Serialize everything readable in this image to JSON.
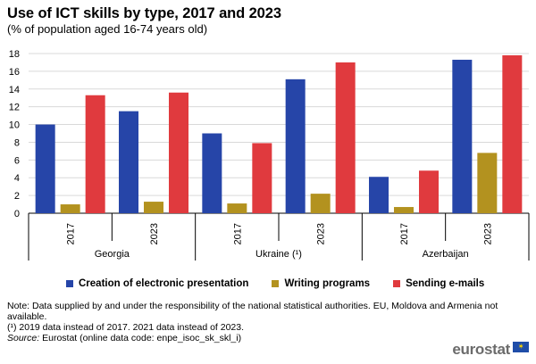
{
  "header": {
    "title": "Use of ICT skills by type, 2017 and 2023",
    "subtitle": "(% of population aged 16-74 years old)"
  },
  "legend": {
    "items": [
      {
        "label": "Creation of electronic presentation",
        "color": "#2645a8"
      },
      {
        "label": "Writing programs",
        "color": "#b3921f"
      },
      {
        "label": "Sending e-mails",
        "color": "#e03a3e"
      }
    ]
  },
  "notes": {
    "note1": "Note: Data supplied by and under the responsibility of the national statistical authorities. EU, Moldova and Armenia not available.",
    "note2": "(¹) 2019 data instead of 2017. 2021 data instead of 2023.",
    "source_label": "Source:",
    "source_text": " Eurostat (online data code: enpe_isoc_sk_skl_i)"
  },
  "logo": {
    "text": "eurostat",
    "icon": "eu-flag-icon"
  },
  "chart_data": {
    "type": "bar",
    "title": "Use of ICT skills by type, 2017 and 2023",
    "subtitle": "(% of population aged 16-74 years old)",
    "ylim": [
      0,
      18
    ],
    "yticks": [
      0,
      2,
      4,
      6,
      8,
      10,
      12,
      14,
      16,
      18
    ],
    "grid": true,
    "legend_position": "bottom",
    "groups": [
      {
        "name": "Georgia",
        "categories": [
          "2017",
          "2023"
        ]
      },
      {
        "name": "Ukraine (¹)",
        "categories": [
          "2017",
          "2023"
        ]
      },
      {
        "name": "Azerbaijan",
        "categories": [
          "2017",
          "2023"
        ]
      }
    ],
    "categories": [
      "2017",
      "2023",
      "2017",
      "2023",
      "2017",
      "2023"
    ],
    "series": [
      {
        "name": "Creation of electronic presentation",
        "color": "#2645a8",
        "values": [
          10.0,
          11.5,
          9.0,
          15.1,
          4.1,
          17.3
        ]
      },
      {
        "name": "Writing programs",
        "color": "#b3921f",
        "values": [
          1.0,
          1.3,
          1.1,
          2.2,
          0.7,
          6.8
        ]
      },
      {
        "name": "Sending e-mails",
        "color": "#e03a3e",
        "values": [
          13.3,
          13.6,
          7.9,
          17.0,
          4.8,
          17.8
        ]
      }
    ]
  }
}
